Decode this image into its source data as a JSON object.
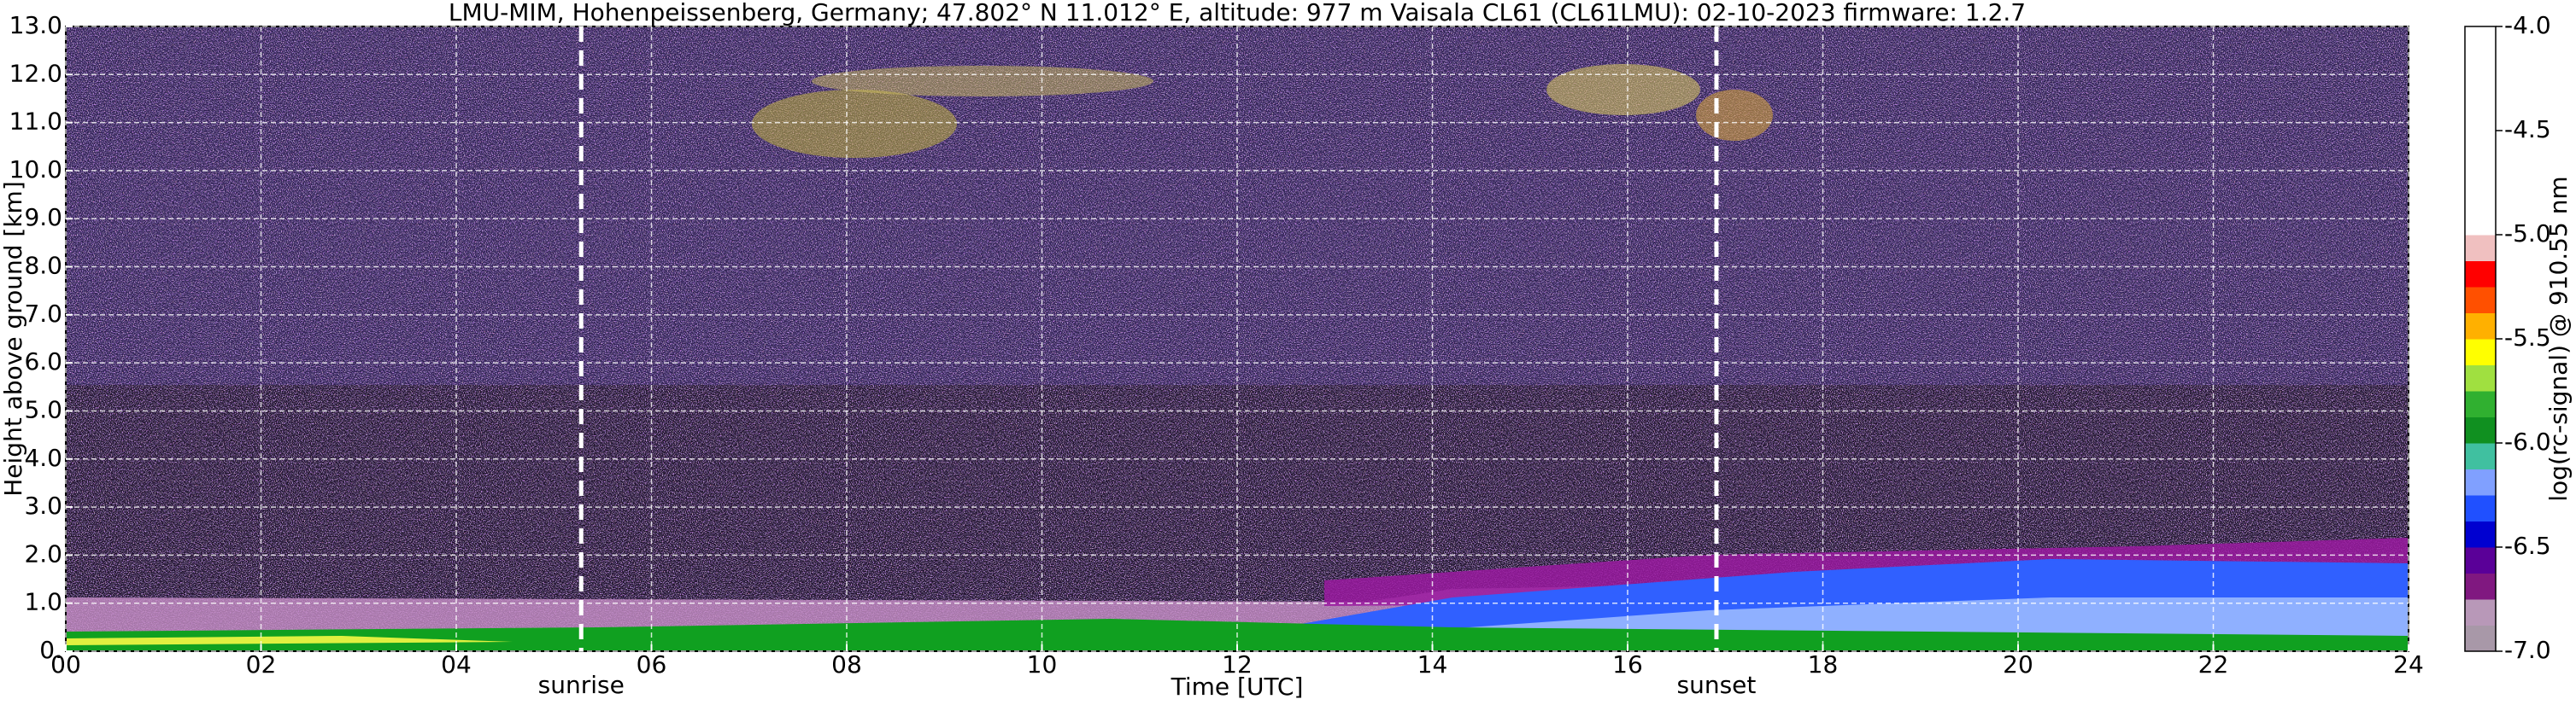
{
  "chart_data": {
    "type": "heatmap",
    "title": "LMU-MIM, Hohenpeissenberg, Germany; 47.802° N 11.012° E, altitude: 977 m    Vaisala CL61 (CL61LMU): 02-10-2023    firmware: 1.2.7",
    "xlabel": "Time [UTC]",
    "ylabel": "Height above ground [km]",
    "xlim": [
      0,
      24
    ],
    "xticks": [
      {
        "value": 0,
        "label": "00"
      },
      {
        "value": 2,
        "label": "02"
      },
      {
        "value": 4,
        "label": "04"
      },
      {
        "value": 6,
        "label": "06"
      },
      {
        "value": 8,
        "label": "08"
      },
      {
        "value": 10,
        "label": "10"
      },
      {
        "value": 12,
        "label": "12"
      },
      {
        "value": 14,
        "label": "14"
      },
      {
        "value": 16,
        "label": "16"
      },
      {
        "value": 18,
        "label": "18"
      },
      {
        "value": 20,
        "label": "20"
      },
      {
        "value": 22,
        "label": "22"
      },
      {
        "value": 24,
        "label": "24"
      }
    ],
    "ylim": [
      0,
      13
    ],
    "yticks": [
      {
        "value": 0,
        "label": "0."
      },
      {
        "value": 1,
        "label": "1.0"
      },
      {
        "value": 2,
        "label": "2.0"
      },
      {
        "value": 3,
        "label": "3.0"
      },
      {
        "value": 4,
        "label": "4.0"
      },
      {
        "value": 5,
        "label": "5.0"
      },
      {
        "value": 6,
        "label": "6.0"
      },
      {
        "value": 7,
        "label": "7.0"
      },
      {
        "value": 8,
        "label": "8.0"
      },
      {
        "value": 9,
        "label": "9.0"
      },
      {
        "value": 10,
        "label": "10.0"
      },
      {
        "value": 11,
        "label": "11.0"
      },
      {
        "value": 12,
        "label": "12.0"
      },
      {
        "value": 13,
        "label": "13.0"
      }
    ],
    "grid": true,
    "events": [
      {
        "name": "sunrise",
        "x": 5.28
      },
      {
        "name": "sunset",
        "x": 16.91
      }
    ],
    "colorbar": {
      "label": "log(rc-signal) @ 910.55 nm",
      "lim": [
        -7,
        -4
      ],
      "ticks": [
        {
          "value": -4,
          "label": "-4.0"
        },
        {
          "value": -4.5,
          "label": "-4.5"
        },
        {
          "value": -5,
          "label": "-5.0"
        },
        {
          "value": -5.5,
          "label": "-5.5"
        },
        {
          "value": -6,
          "label": "-6.0"
        },
        {
          "value": -6.5,
          "label": "-6.5"
        },
        {
          "value": -7,
          "label": "-7.0"
        }
      ],
      "colors": [
        "#a898a8",
        "#b898b8",
        "#801880",
        "#5a0098",
        "#0000d0",
        "#2050ff",
        "#80a0ff",
        "#40c0a0",
        "#109020",
        "#30b030",
        "#a0e040",
        "#ffff00",
        "#ffb000",
        "#ff5000",
        "#ff0000",
        "#f0c0c0",
        "#ffffff",
        "#ffffff",
        "#ffffff",
        "#ffffff",
        "#ffffff",
        "#ffffff",
        "#ffffff",
        "#ffffff"
      ]
    }
  }
}
